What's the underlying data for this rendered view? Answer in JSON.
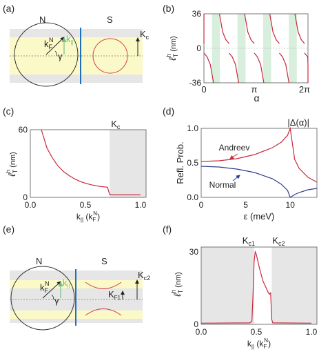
{
  "panel_labels": [
    "(a)",
    "(b)",
    "(c)",
    "(d)",
    "(e)",
    "(f)"
  ],
  "panel_a": {
    "left": "N",
    "right": "S",
    "kFN": "k",
    "kFN_sub": "F",
    "kFN_sup": "N",
    "kpar": "k",
    "kpar_sub": "||",
    "gamma": "γ",
    "Kc": "K",
    "Kc_sub": "c"
  },
  "panel_e": {
    "left": "N",
    "right": "S",
    "kFN": "k",
    "kFN_sub": "F",
    "kFN_sup": "N",
    "kpar": "k",
    "kpar_sub": "||",
    "gamma": "γ",
    "KF1": "K",
    "KF1_sub": "F1",
    "Kc2": "K",
    "Kc2_sub": "c2"
  },
  "ylabel_lT": {
    "main": "ℓ",
    "sub": "T",
    "sup": "h",
    "unit": "(nm)"
  },
  "chart_data": [
    {
      "id": "b",
      "type": "line",
      "xlabel": "α",
      "ylabel": "ℓ_T^h (nm)",
      "xlim": [
        0,
        6.5
      ],
      "ylim": [
        -36,
        36
      ],
      "xticks": [
        "0",
        "π",
        "2π"
      ],
      "yticks": [
        "36",
        "0",
        "-36"
      ],
      "shaded_intervals": [
        [
          0.5,
          1.0
        ],
        [
          2.1,
          2.6
        ],
        [
          3.7,
          4.2
        ],
        [
          5.3,
          5.8
        ]
      ],
      "period": 1.5708,
      "series": [
        {
          "x": [
            0,
            0.2,
            0.4,
            0.6,
            0.785,
            0.97,
            1.17,
            1.37,
            1.5708
          ],
          "y": [
            -5,
            -9,
            -17,
            -36,
            0,
            36,
            17,
            9,
            5
          ]
        }
      ]
    },
    {
      "id": "c",
      "type": "line",
      "xlabel": "k",
      "xlabel_sub": "||",
      "xlabel_unit": "(k",
      "xlabel_unit_sub": "F",
      "xlabel_unit_sup": "N",
      "xlabel_close": ")",
      "ylabel": "ℓ_T^h (nm)",
      "xlim": [
        0,
        1.05
      ],
      "ylim": [
        0,
        60
      ],
      "xticks": [
        "0.0",
        "0.5",
        "1.0"
      ],
      "yticks": [
        "60",
        "0"
      ],
      "annotation": "K",
      "annotation_sub": "c",
      "shaded_from": 0.72,
      "series": [
        {
          "x": [
            0.1,
            0.15,
            0.2,
            0.25,
            0.3,
            0.35,
            0.4,
            0.45,
            0.5,
            0.55,
            0.6,
            0.65,
            0.7,
            0.72,
            0.76,
            1.0
          ],
          "y": [
            60,
            44,
            35,
            28,
            23,
            19.5,
            16.5,
            14.2,
            12.5,
            11.2,
            10.2,
            9.5,
            9.0,
            2.5,
            2.2,
            2.2
          ]
        }
      ]
    },
    {
      "id": "d",
      "type": "line",
      "xlabel": "ε (meV)",
      "ylabel": "Refl. Prob.",
      "xlim": [
        0,
        13
      ],
      "ylim": [
        0,
        1.0
      ],
      "xticks": [
        "0",
        "5",
        "10"
      ],
      "yticks": [
        "1.0",
        "0.5",
        "0.0"
      ],
      "top_label": "|Δ(α)|",
      "series": [
        {
          "name": "Andreev",
          "color": "#c8283c",
          "x": [
            0,
            2,
            4,
            6,
            8,
            9,
            9.7,
            10,
            10.5,
            11,
            12,
            13
          ],
          "y": [
            0.52,
            0.53,
            0.56,
            0.62,
            0.72,
            0.8,
            0.9,
            1.0,
            0.55,
            0.42,
            0.29,
            0.22
          ]
        },
        {
          "name": "Normal",
          "color": "#2e3b8c",
          "x": [
            0,
            2,
            4,
            6,
            8,
            9,
            9.7,
            10,
            10.5,
            11,
            12,
            13
          ],
          "y": [
            0.45,
            0.44,
            0.41,
            0.36,
            0.27,
            0.19,
            0.1,
            0.0,
            0.04,
            0.07,
            0.11,
            0.13
          ]
        }
      ]
    },
    {
      "id": "f",
      "type": "line",
      "xlabel": "k",
      "xlabel_sub": "||",
      "xlabel_unit": "(k",
      "xlabel_unit_sub": "F",
      "xlabel_unit_sup": "N",
      "xlabel_close": ")",
      "ylabel": "ℓ_T^h (nm)",
      "xlim": [
        0,
        1.05
      ],
      "ylim": [
        0,
        32
      ],
      "xticks": [
        "0.0",
        "0.5",
        "1.0"
      ],
      "yticks": [
        "30",
        "0"
      ],
      "annotations": [
        {
          "text": "K",
          "sub": "c1"
        },
        {
          "text": "K",
          "sub": "c2"
        }
      ],
      "shaded": [
        [
          0,
          0.48
        ],
        [
          0.64,
          1.05
        ]
      ],
      "series": [
        {
          "x": [
            0,
            0.44,
            0.46,
            0.47,
            0.48,
            0.49,
            0.5,
            0.53,
            0.56,
            0.59,
            0.61,
            0.62,
            0.63,
            0.64,
            0.65,
            1.0
          ],
          "y": [
            0.5,
            0.6,
            1.2,
            12,
            26,
            30,
            29,
            23,
            18,
            15,
            13,
            12.5,
            13,
            2,
            0.6,
            0.5
          ]
        }
      ]
    }
  ]
}
